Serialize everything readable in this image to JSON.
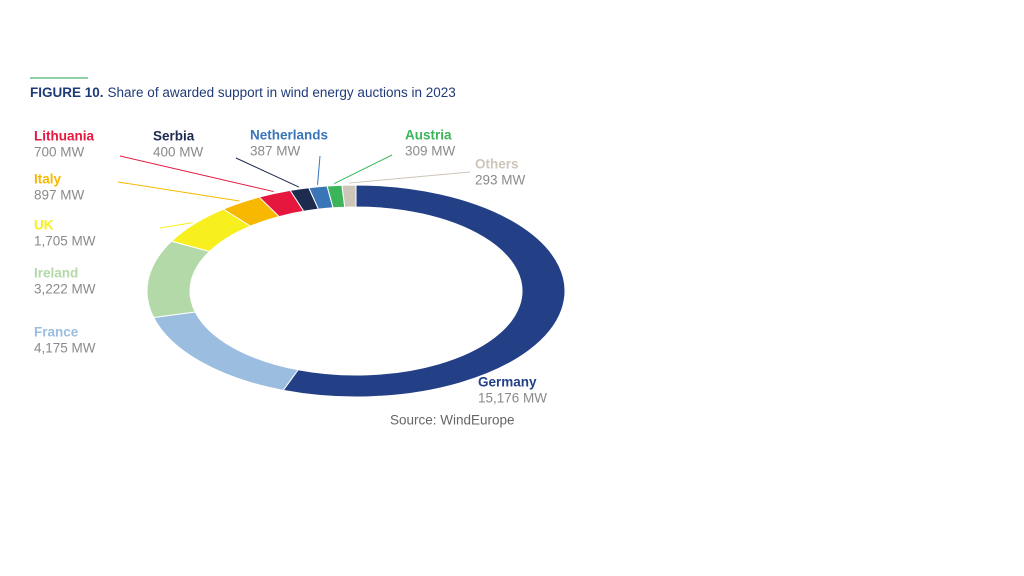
{
  "chart_data": {
    "type": "donut",
    "title_label": "FIGURE 10.",
    "title": "Share of awarded support in wind energy auctions in 2023",
    "source": "Source: WindEurope",
    "categories": [
      "Germany",
      "France",
      "Ireland",
      "UK",
      "Italy",
      "Lithuania",
      "Serbia",
      "Netherlands",
      "Austria",
      "Others"
    ],
    "values": [
      15176,
      4175,
      3222,
      1705,
      897,
      700,
      400,
      387,
      309,
      293
    ],
    "value_labels": [
      "15,176 MW",
      "4,175 MW",
      "3,222 MW",
      "1,705 MW",
      "897 MW",
      "700 MW",
      "400 MW",
      "387 MW",
      "309 MW",
      "293 MW"
    ],
    "colors": [
      "#233f86",
      "#9bbde0",
      "#b3d9a8",
      "#f7f01e",
      "#f9b800",
      "#e5173f",
      "#1d2b4f",
      "#3a75b8",
      "#3cb45a",
      "#cdc5b8"
    ]
  }
}
